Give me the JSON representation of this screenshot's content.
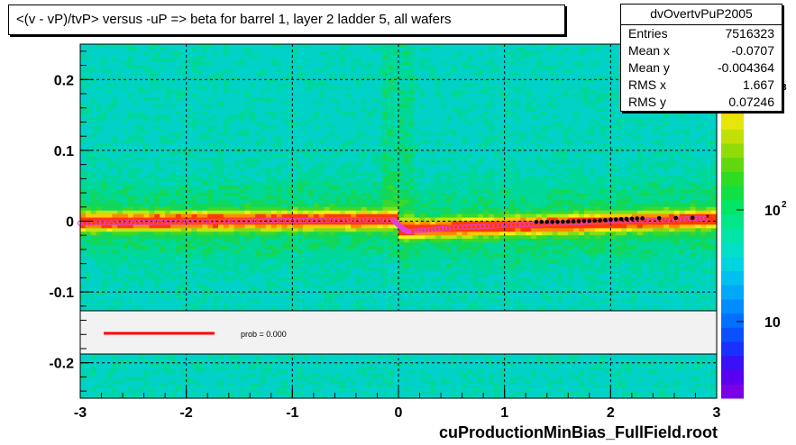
{
  "title": "<(v - vP)/tvP> versus  -uP => beta for barrel 1, layer 2 ladder 5, all wafers",
  "footer": "cuProductionMinBias_FullField.root",
  "stats": {
    "name": "dvOvertvPuP2005",
    "rows": [
      {
        "label": "Entries",
        "value": "7516323"
      },
      {
        "label": "Mean x",
        "value": "-0.0707"
      },
      {
        "label": "Mean y",
        "value": "-0.004364"
      },
      {
        "label": "RMS x",
        "value": "1.667"
      },
      {
        "label": "RMS y",
        "value": "0.07246"
      }
    ]
  },
  "legend": {
    "text": "prob = 0.000",
    "line_color": "#ff0000"
  },
  "colorbar": {
    "labels": [
      "10",
      "10",
      "10"
    ],
    "exponents": [
      "",
      "2",
      "3"
    ]
  },
  "chart_data": {
    "type": "heatmap",
    "title": "<(v - vP)/tvP> versus  -uP => beta for barrel 1, layer 2 ladder 5, all wafers",
    "xlabel": "",
    "ylabel": "",
    "xlim": [
      -3,
      3
    ],
    "ylim": [
      -0.25,
      0.25
    ],
    "x_ticks": [
      "-3",
      "-2",
      "-1",
      "0",
      "1",
      "2",
      "3"
    ],
    "y_ticks": [
      "-0.2",
      "-0.1",
      "0",
      "0.1",
      "0.2"
    ],
    "grid": true,
    "z_scale": "log",
    "profile_points": {
      "name": "profile",
      "x": [
        -3.0,
        -2.5,
        -2.0,
        -1.5,
        -1.0,
        -0.5,
        -0.05,
        0.05,
        0.1,
        0.5,
        1.0,
        1.5,
        2.0,
        2.5,
        2.93
      ],
      "y": [
        -0.003,
        -0.002,
        -0.001,
        0.0,
        0.001,
        0.002,
        0.002,
        -0.012,
        -0.015,
        -0.009,
        -0.006,
        -0.003,
        0.0,
        0.002,
        0.004
      ]
    },
    "fit_points": {
      "name": "fit",
      "x": [
        1.3,
        1.5,
        1.7,
        1.9,
        2.1,
        2.3,
        2.93
      ],
      "y": [
        -0.001,
        -0.001,
        0.0,
        0.001,
        0.003,
        0.004,
        0.005
      ]
    }
  }
}
